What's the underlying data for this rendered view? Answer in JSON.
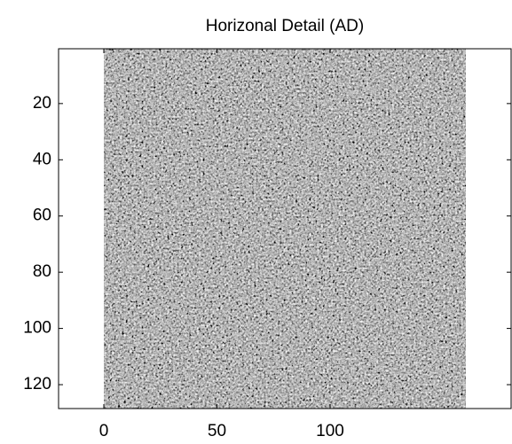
{
  "chart_data": {
    "type": "image",
    "title": "Horizonal Detail (AD)",
    "xlim": [
      -20,
      180
    ],
    "xticks": [
      0,
      50,
      100
    ],
    "ylim": [
      0.5,
      128.5
    ],
    "yticks": [
      20,
      40,
      60,
      80,
      100,
      120
    ],
    "y_reversed": true,
    "image_xlim": [
      0,
      160
    ],
    "colormap": "gray"
  }
}
